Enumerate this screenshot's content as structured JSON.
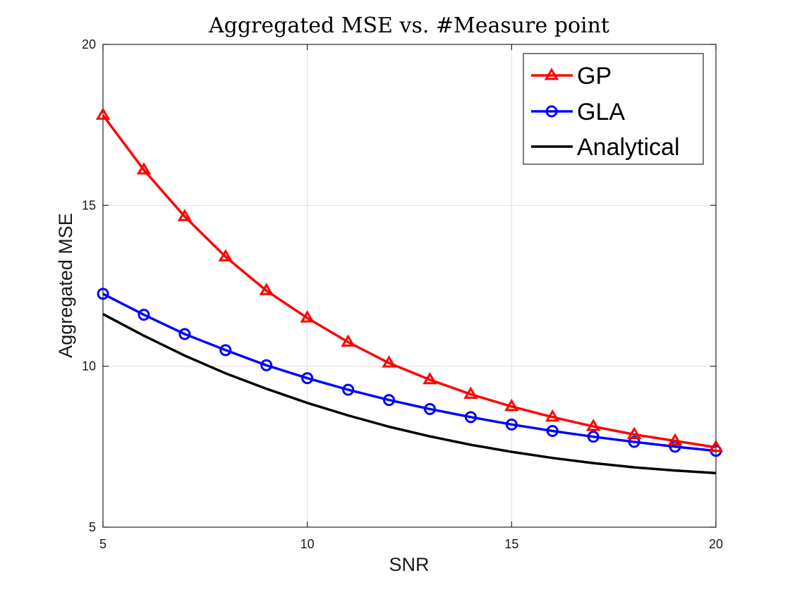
{
  "chart_data": {
    "type": "line",
    "title": "Aggregated MSE vs. #Measure point",
    "xlabel": "SNR",
    "ylabel": "Aggregated MSE",
    "xlim": [
      5,
      20
    ],
    "ylim": [
      5,
      20
    ],
    "xticks": [
      5,
      10,
      15,
      20
    ],
    "yticks": [
      5,
      10,
      15,
      20
    ],
    "grid": true,
    "legend_position": "top-right",
    "series": [
      {
        "name": "GP",
        "color": "#ff0000",
        "marker": "triangle",
        "x": [
          5,
          6,
          7,
          8,
          9,
          10,
          11,
          12,
          13,
          14,
          15,
          16,
          17,
          18,
          19,
          20
        ],
        "y": [
          17.8,
          16.1,
          14.65,
          13.4,
          12.35,
          11.5,
          10.75,
          10.1,
          9.58,
          9.13,
          8.75,
          8.42,
          8.13,
          7.88,
          7.68,
          7.48
        ]
      },
      {
        "name": "GLA",
        "color": "#0000ff",
        "marker": "circle",
        "x": [
          5,
          6,
          7,
          8,
          9,
          10,
          11,
          12,
          13,
          14,
          15,
          16,
          17,
          18,
          19,
          20
        ],
        "y": [
          12.25,
          11.6,
          11.0,
          10.5,
          10.03,
          9.63,
          9.27,
          8.95,
          8.67,
          8.42,
          8.19,
          7.99,
          7.81,
          7.65,
          7.5,
          7.37
        ]
      },
      {
        "name": "Analytical",
        "color": "#000000",
        "marker": "none",
        "x": [
          5,
          6,
          7,
          8,
          9,
          10,
          11,
          12,
          13,
          14,
          15,
          16,
          17,
          18,
          19,
          20
        ],
        "y": [
          11.62,
          10.95,
          10.33,
          9.78,
          9.3,
          8.86,
          8.47,
          8.12,
          7.82,
          7.56,
          7.34,
          7.15,
          6.99,
          6.86,
          6.76,
          6.68
        ]
      }
    ]
  }
}
